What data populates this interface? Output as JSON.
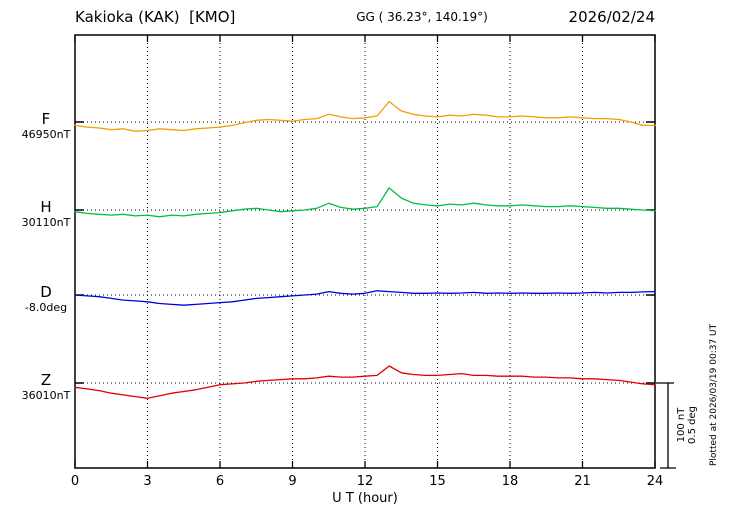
{
  "header": {
    "station": "Kakioka (KAK)  [KMO]",
    "coords": "GG ( 36.23°, 140.19°)",
    "date": "2026/02/24"
  },
  "footer": {
    "xlabel": "U T (hour)"
  },
  "right_notes": {
    "scale_nt": "100 nT",
    "scale_deg": "0.5 deg",
    "plotted": "Plotted at 2026/03/19 00:37 UT"
  },
  "chart_data": {
    "type": "line",
    "title": "Kakioka (KAK) [KMO] magnetogram for 2026/02/24",
    "xlabel": "U T (hour)",
    "x_range": [
      0,
      24
    ],
    "x_ticks": [
      0,
      3,
      6,
      9,
      12,
      15,
      18,
      21,
      24
    ],
    "x_step_hours": 0.5,
    "grid": "dotted vertical at 3h intervals, dotted horizontal baselines per trace",
    "scale_bar": {
      "label_nT": "100 nT",
      "label_deg": "0.5 deg",
      "nT": 100,
      "deg": 0.5
    },
    "series": [
      {
        "name": "F",
        "unit": "nT",
        "baseline_value": 46950,
        "baseline_label": "46950nT",
        "color": "#f0a000",
        "offsets": [
          -4,
          -6,
          -7,
          -9,
          -8,
          -11,
          -10,
          -8,
          -9,
          -10,
          -8,
          -7,
          -6,
          -4,
          -1,
          2,
          3,
          2,
          1,
          3,
          4,
          9,
          6,
          4,
          5,
          7,
          24,
          13,
          9,
          7,
          6,
          8,
          7,
          9,
          8,
          6,
          6,
          7,
          6,
          5,
          5,
          6,
          5,
          4,
          4,
          3,
          0,
          -4,
          -4
        ]
      },
      {
        "name": "H",
        "unit": "nT",
        "baseline_value": 30110,
        "baseline_label": "30110nT",
        "color": "#00c040",
        "offsets": [
          -2,
          -4,
          -5,
          -6,
          -5,
          -7,
          -6,
          -8,
          -6,
          -7,
          -5,
          -4,
          -3,
          -1,
          1,
          2,
          0,
          -2,
          -1,
          0,
          2,
          8,
          3,
          1,
          2,
          4,
          26,
          14,
          8,
          6,
          5,
          7,
          6,
          8,
          6,
          5,
          5,
          6,
          5,
          4,
          4,
          5,
          4,
          3,
          2,
          2,
          1,
          0,
          -1
        ]
      },
      {
        "name": "D",
        "unit": "deg",
        "baseline_value": -8.0,
        "baseline_label": "-8.0deg",
        "color": "#0000dd",
        "offsets": [
          0,
          -0.005,
          -0.01,
          -0.02,
          -0.03,
          -0.035,
          -0.04,
          -0.05,
          -0.055,
          -0.06,
          -0.055,
          -0.05,
          -0.045,
          -0.04,
          -0.03,
          -0.02,
          -0.015,
          -0.01,
          -0.005,
          0,
          0.005,
          0.02,
          0.01,
          0.005,
          0.01,
          0.025,
          0.02,
          0.015,
          0.01,
          0.01,
          0.012,
          0.01,
          0.012,
          0.015,
          0.01,
          0.012,
          0.01,
          0.012,
          0.01,
          0.01,
          0.012,
          0.01,
          0.012,
          0.015,
          0.012,
          0.015,
          0.015,
          0.018,
          0.02
        ]
      },
      {
        "name": "Z",
        "unit": "nT",
        "baseline_value": 36010,
        "baseline_label": "36010nT",
        "color": "#e00000",
        "offsets": [
          -5,
          -7,
          -9,
          -12,
          -14,
          -16,
          -18,
          -15,
          -12,
          -10,
          -8,
          -5,
          -2,
          -1,
          0,
          2,
          3,
          4,
          5,
          5,
          6,
          8,
          7,
          7,
          8,
          9,
          20,
          12,
          10,
          9,
          9,
          10,
          11,
          9,
          9,
          8,
          8,
          8,
          7,
          7,
          6,
          6,
          5,
          5,
          4,
          3,
          1,
          -1,
          -2
        ]
      }
    ]
  }
}
